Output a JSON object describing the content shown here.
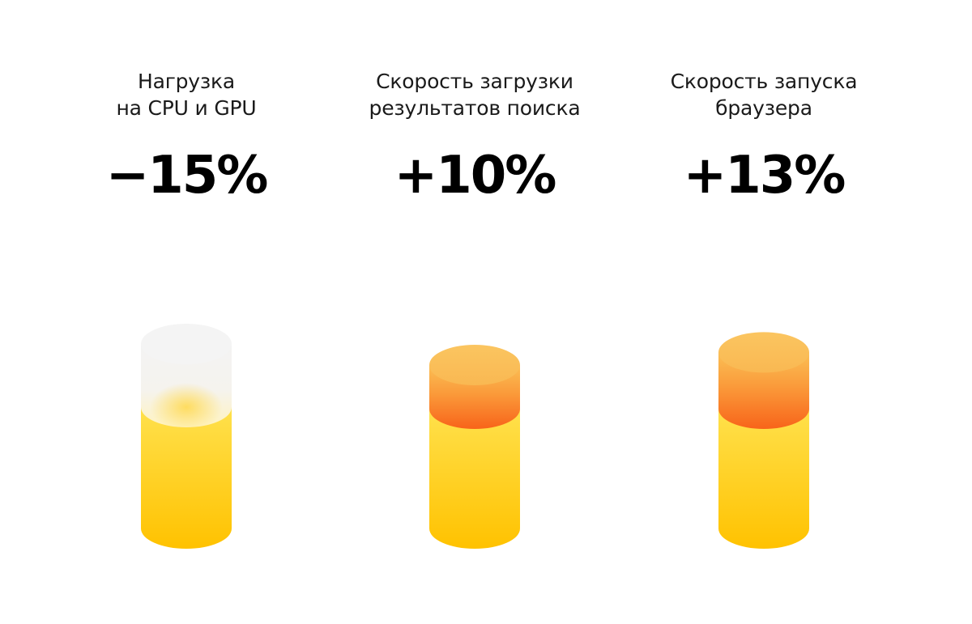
{
  "chart_data": {
    "type": "bar",
    "title": "",
    "xlabel": "",
    "ylabel": "",
    "legend": "none",
    "grid": false,
    "categories": [
      {
        "lines": [
          "Нагрузка",
          "на CPU и GPU"
        ]
      },
      {
        "lines": [
          "Скорость загрузки",
          "результатов поиска"
        ]
      },
      {
        "lines": [
          "Скорость запуска",
          "браузера"
        ]
      }
    ],
    "values": [
      -15,
      10,
      13
    ],
    "value_labels": [
      "−15%",
      "+10%",
      "+13%"
    ],
    "series": [
      {
        "values": [
          100,
          100,
          100
        ]
      },
      {
        "values": [
          -15,
          10,
          13
        ]
      }
    ]
  },
  "colors": {
    "base_top": "#ffe14d",
    "base_bottom": "#ffc200",
    "cap_top": "#fbc15c",
    "cap_bottom": "#fa6c1e",
    "removed": "#eeeeee",
    "text": "#000000"
  }
}
